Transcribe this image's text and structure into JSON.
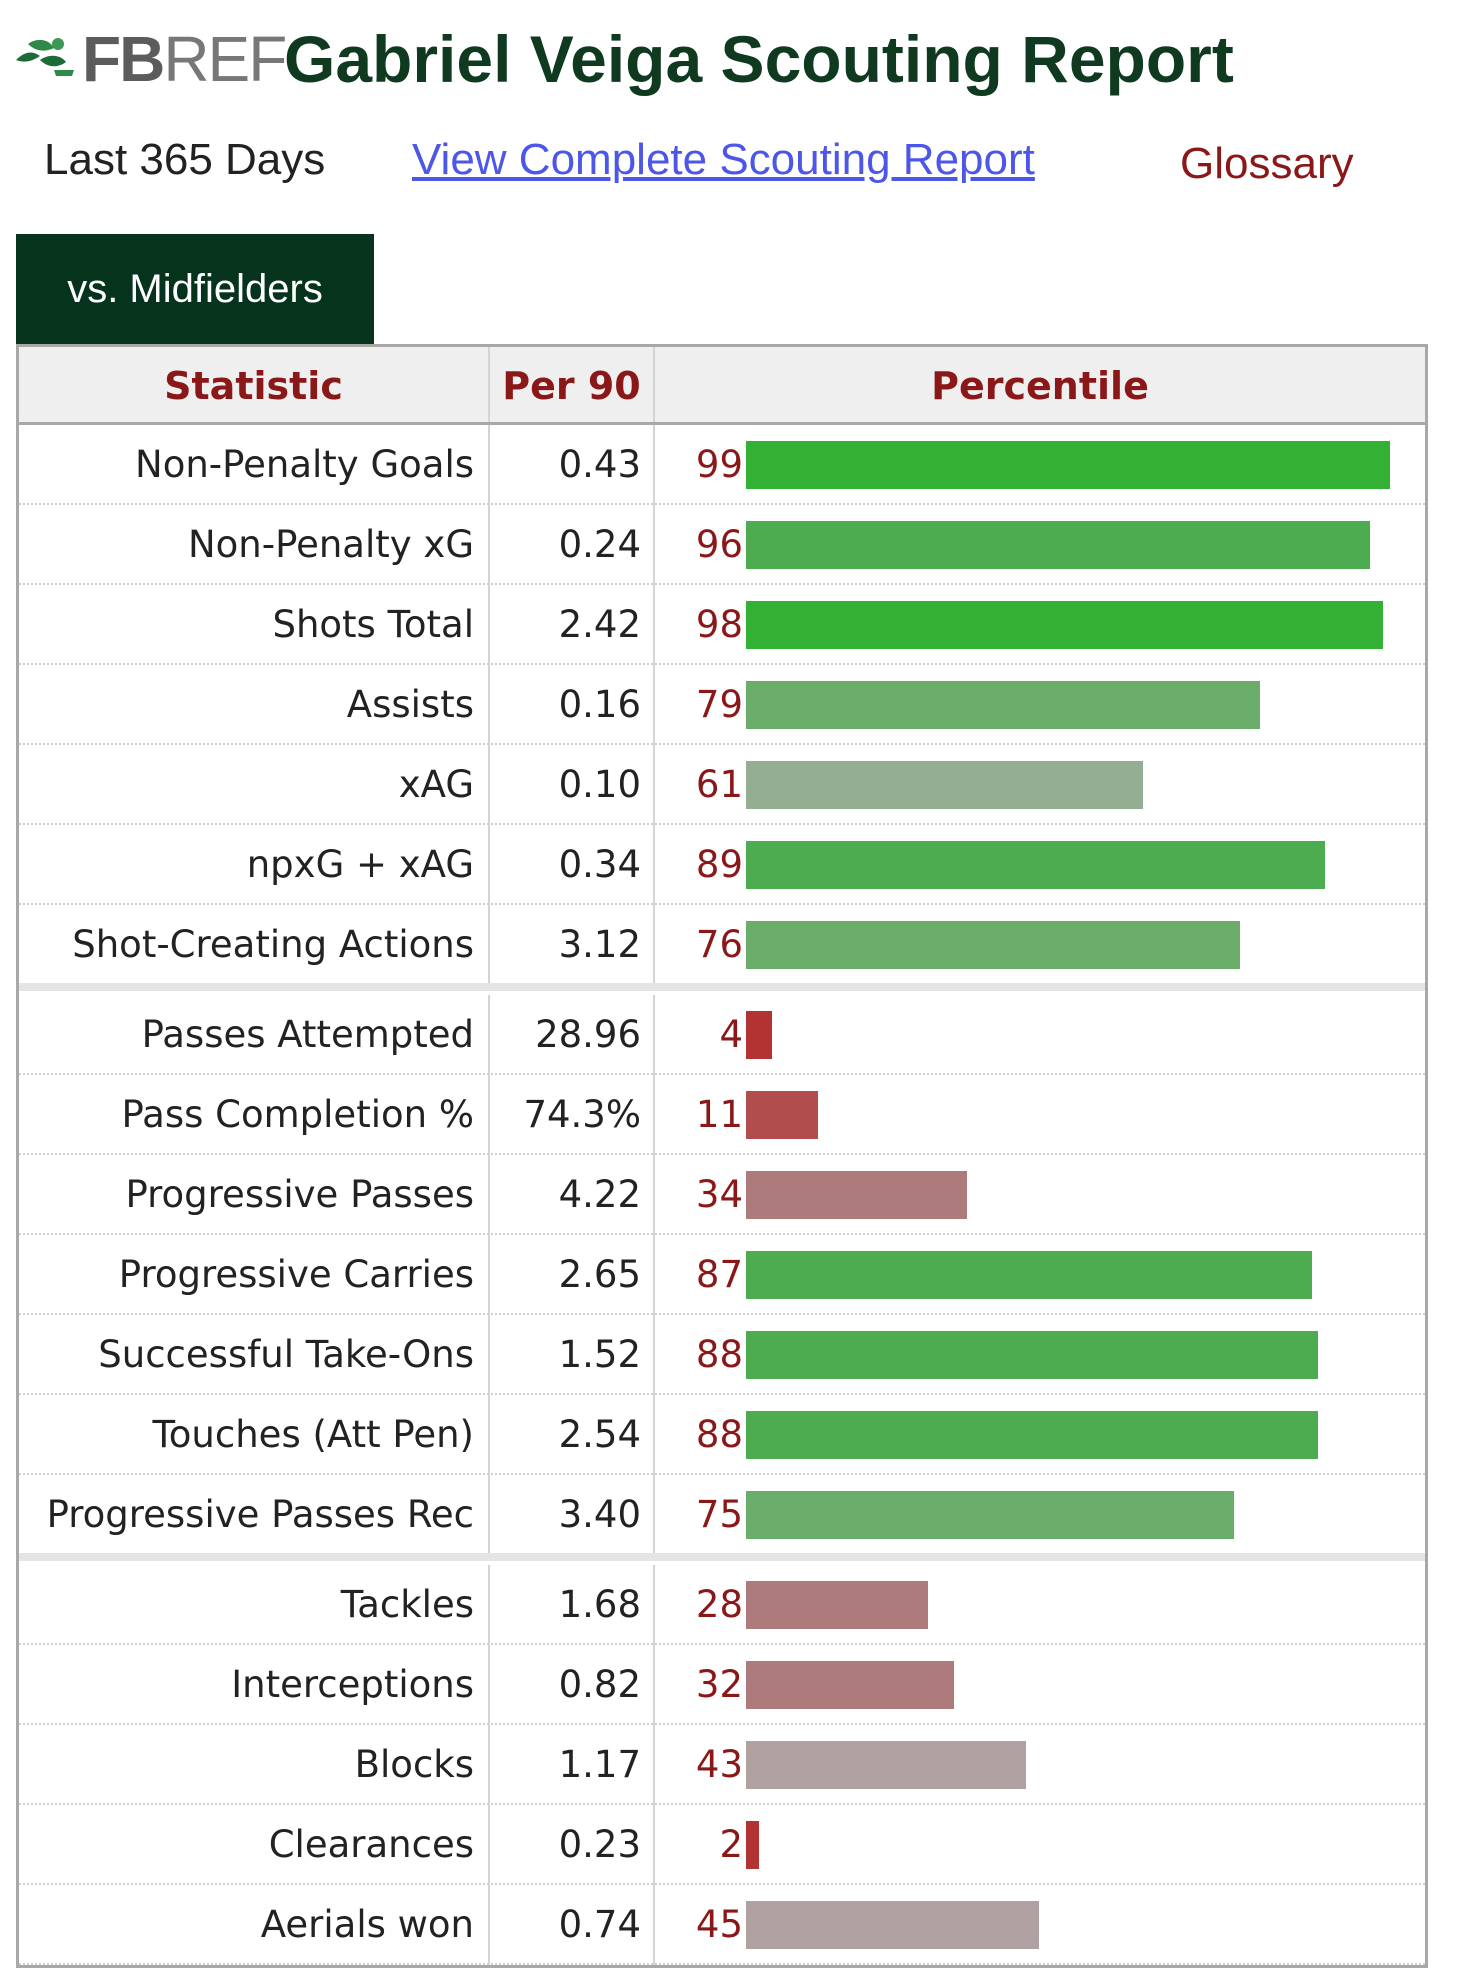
{
  "header": {
    "logo_text_bold": "FB",
    "logo_text_light": "REF",
    "logo_icon": "fbref-leaf-icon",
    "title": "Gabriel Veiga Scouting Report"
  },
  "subnav": {
    "period": "Last 365 Days",
    "complete_report_link": "View Complete Scouting Report",
    "glossary": "Glossary"
  },
  "tab": {
    "label": "vs. Midfielders"
  },
  "table": {
    "columns": {
      "statistic": "Statistic",
      "per90": "Per 90",
      "percentile": "Percentile"
    },
    "groups": [
      {
        "rows": [
          {
            "stat": "Non-Penalty Goals",
            "per90": "0.43",
            "pct": 99
          },
          {
            "stat": "Non-Penalty xG",
            "per90": "0.24",
            "pct": 96
          },
          {
            "stat": "Shots Total",
            "per90": "2.42",
            "pct": 98
          },
          {
            "stat": "Assists",
            "per90": "0.16",
            "pct": 79
          },
          {
            "stat": "xAG",
            "per90": "0.10",
            "pct": 61
          },
          {
            "stat": "npxG + xAG",
            "per90": "0.34",
            "pct": 89
          },
          {
            "stat": "Shot-Creating Actions",
            "per90": "3.12",
            "pct": 76
          }
        ]
      },
      {
        "rows": [
          {
            "stat": "Passes Attempted",
            "per90": "28.96",
            "pct": 4
          },
          {
            "stat": "Pass Completion %",
            "per90": "74.3%",
            "pct": 11
          },
          {
            "stat": "Progressive Passes",
            "per90": "4.22",
            "pct": 34
          },
          {
            "stat": "Progressive Carries",
            "per90": "2.65",
            "pct": 87
          },
          {
            "stat": "Successful Take-Ons",
            "per90": "1.52",
            "pct": 88
          },
          {
            "stat": "Touches (Att Pen)",
            "per90": "2.54",
            "pct": 88
          },
          {
            "stat": "Progressive Passes Rec",
            "per90": "3.40",
            "pct": 75
          }
        ]
      },
      {
        "rows": [
          {
            "stat": "Tackles",
            "per90": "1.68",
            "pct": 28
          },
          {
            "stat": "Interceptions",
            "per90": "0.82",
            "pct": 32
          },
          {
            "stat": "Blocks",
            "per90": "1.17",
            "pct": 43
          },
          {
            "stat": "Clearances",
            "per90": "0.23",
            "pct": 2
          },
          {
            "stat": "Aerials won",
            "per90": "0.74",
            "pct": 45
          }
        ]
      }
    ]
  },
  "bar_colors": {
    "elite": "#33b134",
    "high": "#4dac4f",
    "good": "#6aad6b",
    "above_avg": "#93ae93",
    "avg": "#b0a1a1",
    "below_avg": "#ad7b7b",
    "poor": "#b24d4d",
    "very_poor": "#b33333"
  }
}
